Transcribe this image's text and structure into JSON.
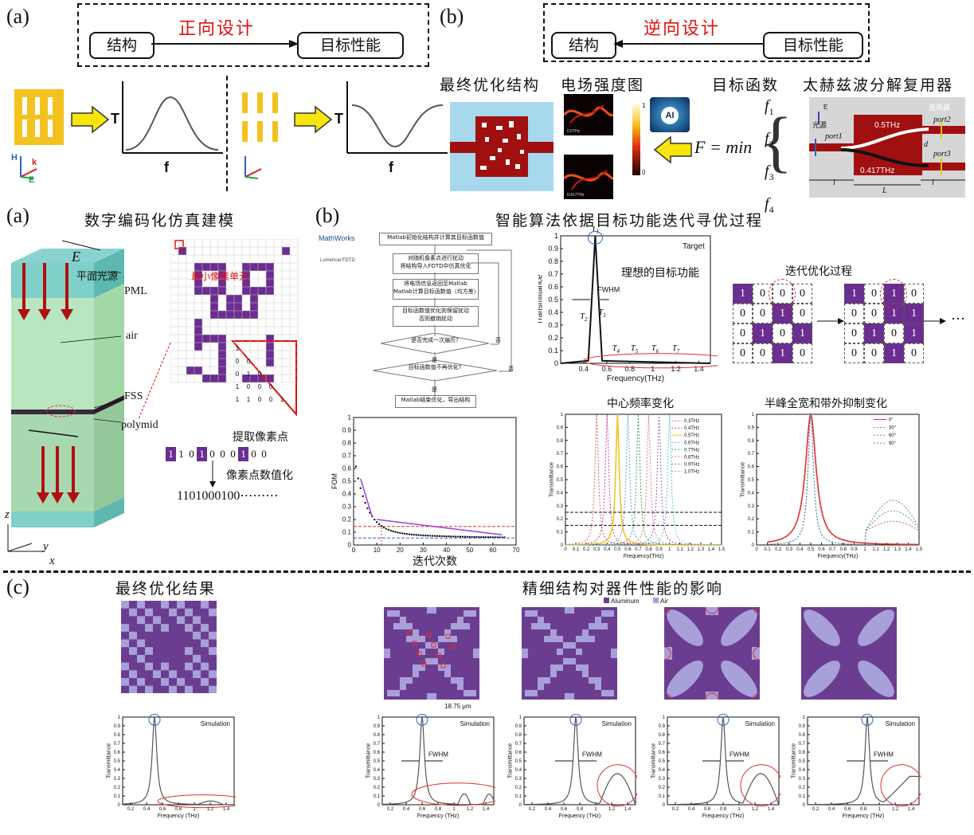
{
  "top": {
    "a": {
      "panel": "(a)",
      "title": "正向设计",
      "from": "结构",
      "to": "目标性能",
      "axis_y": "T",
      "axis_x": "f",
      "h": "H",
      "k": "k",
      "e": "E"
    },
    "b": {
      "panel": "(b)",
      "title": "逆向设计",
      "from": "结构",
      "to": "目标性能",
      "cap_struct": "最终优化结构",
      "cap_field": "电场强度图",
      "cap_obj": "目标函数",
      "cap_demux": "太赫兹波分解复用器",
      "formula_lhs": "F = min",
      "f1": "f",
      "f2": "f",
      "f3": "f",
      "f4": "f",
      "s1": "1",
      "s2": "2",
      "s3": "3",
      "s4": "4",
      "ai": "AI",
      "field_lbl1": "0.5THz",
      "field_lbl2": "0.417THz",
      "cb_max": "1",
      "cb_min": "0",
      "demux": {
        "E": "E",
        "source": "光源",
        "monitor": "监视器",
        "port1": "port1",
        "port2": "port2",
        "port3": "port3",
        "f1": "0.5THz",
        "f2": "0.417THz",
        "d": "d",
        "l1": "l",
        "L": "L",
        "l2": "l"
      }
    }
  },
  "mid": {
    "a": {
      "panel": "(a)",
      "title": "数字编码化仿真建模",
      "E": "E",
      "source": "平面光源",
      "pml": "PML",
      "air": "air",
      "fss": "FSS",
      "polymid": "polymid",
      "z": "z",
      "y": "y",
      "x": "x",
      "min_pixel": "最小像素单元",
      "extract": "提取像素点",
      "digitize": "像素点数值化",
      "bits": [
        "1",
        "1",
        "0",
        "1",
        "0",
        "0",
        "0",
        "1",
        "0",
        "0"
      ],
      "code": "1101000100⋯⋯⋯"
    },
    "b": {
      "panel": "(b)",
      "title": "智能算法依据目标功能迭代寻优过程",
      "logo1": "MathWorks",
      "logo2": "Lumerical FDTD",
      "flow": [
        "Matlab初始化结构并计算其目标函数值",
        "对随机像素点进行扰动\n将结构导入FDTD中仿真优化",
        "将电场信息返回至Matlab\nMatlab计算目标函数值（均方差）",
        "目标函数值优化则保留扰动\n否则撤销扰动",
        "是否完成一次遍历?",
        "目标函数值不再优化?",
        "Matlab结束优化，导出结构"
      ],
      "flow_yes": "是",
      "flow_no": "否",
      "target_lbl": "Target",
      "ideal": "理想的目标功能",
      "fwhm": "FWHM",
      "T": [
        "T",
        "T",
        "T",
        "T",
        "T",
        "T",
        "T"
      ],
      "Tsub": [
        "1",
        "2",
        "3",
        "4",
        "5",
        "6",
        "7"
      ],
      "iter_title": "迭代优化过程",
      "grid1": [
        [
          "1",
          "0",
          "0",
          "0"
        ],
        [
          "0",
          "0",
          "1",
          "0"
        ],
        [
          "0",
          "1",
          "0",
          "1"
        ],
        [
          "0",
          "0",
          "1",
          "0"
        ]
      ],
      "grid2": [
        [
          "1",
          "0",
          "1",
          "0"
        ],
        [
          "0",
          "0",
          "1",
          "1"
        ],
        [
          "0",
          "1",
          "0",
          "1"
        ],
        [
          "0",
          "0",
          "1",
          "0"
        ]
      ],
      "ellipsis": "⋯",
      "fom_xlabel": "迭代次数",
      "fom_ylabel": "FOM",
      "center_title": "中心频率变化",
      "fwhm_title": "半峰全宽和带外抑制变化",
      "freq_legend": [
        "0.3THz",
        "0.4THz",
        "0.5THz",
        "0.6THz",
        "0.7THz",
        "0.8THz",
        "0.9THz",
        "1.0THz"
      ],
      "angle_legend": [
        "0°",
        "30°",
        "60°",
        "90°"
      ],
      "xlab_thz": "Frequency(THz)",
      "xlab_thz_sp": "Frequency (THz)",
      "ylab_t": "Transmittance"
    }
  },
  "bot": {
    "panel": "(c)",
    "title_left": "最终优化结果",
    "title_right": "精细结构对器件性能的影响",
    "sim": "Simulation",
    "fwhm": "FWHM",
    "aluminum": "Aluminum",
    "air": "Air",
    "scale": "18.75 μm"
  },
  "chart_data": [
    {
      "type": "line",
      "title": "",
      "xlabel": "Frequency (THz)",
      "ylabel": "Transmittance",
      "xlim": [
        0.2,
        1.5
      ],
      "ylim": [
        0,
        1
      ],
      "series": [
        {
          "values": [
            [
              0.2,
              0.01
            ],
            [
              0.4,
              0.06
            ],
            [
              0.46,
              0.3
            ],
            [
              0.5,
              1.0
            ],
            [
              0.54,
              0.3
            ],
            [
              0.6,
              0.05
            ],
            [
              0.8,
              0.01
            ],
            [
              1.0,
              0.0
            ],
            [
              1.5,
              0.0
            ]
          ]
        }
      ]
    },
    {
      "type": "line",
      "title": "",
      "xlabel": "迭代次数",
      "ylabel": "FOM",
      "xlim": [
        0,
        70
      ],
      "ylim": [
        0,
        1.0
      ],
      "series": [
        {
          "values": [
            [
              1,
              0.57
            ],
            [
              2,
              0.44
            ],
            [
              3,
              0.36
            ],
            [
              5,
              0.27
            ],
            [
              8,
              0.21
            ],
            [
              12,
              0.16
            ],
            [
              20,
              0.12
            ],
            [
              30,
              0.09
            ],
            [
              40,
              0.07
            ],
            [
              50,
              0.06
            ],
            [
              60,
              0.055
            ],
            [
              65,
              0.055
            ]
          ]
        }
      ]
    },
    {
      "type": "line",
      "title": "中心频率变化",
      "xlabel": "Frequency(THz)",
      "ylabel": "Transmittance",
      "xlim": [
        0,
        1.5
      ],
      "ylim": [
        0,
        1
      ],
      "series": [
        {
          "name": "0.3THz",
          "values": [
            [
              0.2,
              0.05
            ],
            [
              0.3,
              1.0
            ],
            [
              0.4,
              0.05
            ]
          ]
        },
        {
          "name": "0.4THz",
          "values": [
            [
              0.3,
              0.05
            ],
            [
              0.4,
              1.0
            ],
            [
              0.5,
              0.05
            ]
          ]
        },
        {
          "name": "0.5THz",
          "values": [
            [
              0.4,
              0.05
            ],
            [
              0.5,
              1.0
            ],
            [
              0.6,
              0.05
            ]
          ]
        },
        {
          "name": "0.6THz",
          "values": [
            [
              0.5,
              0.05
            ],
            [
              0.6,
              1.0
            ],
            [
              0.7,
              0.05
            ]
          ]
        },
        {
          "name": "0.7THz",
          "values": [
            [
              0.6,
              0.05
            ],
            [
              0.7,
              1.0
            ],
            [
              0.8,
              0.05
            ]
          ]
        },
        {
          "name": "0.8THz",
          "values": [
            [
              0.7,
              0.05
            ],
            [
              0.8,
              1.0
            ],
            [
              0.9,
              0.05
            ]
          ]
        },
        {
          "name": "0.9THz",
          "values": [
            [
              0.8,
              0.05
            ],
            [
              0.9,
              1.0
            ],
            [
              1.0,
              0.05
            ]
          ]
        },
        {
          "name": "1.0THz",
          "values": [
            [
              0.9,
              0.05
            ],
            [
              1.0,
              1.0
            ],
            [
              1.1,
              0.05
            ]
          ]
        }
      ]
    },
    {
      "type": "line",
      "title": "半峰全宽和带外抑制变化",
      "xlabel": "Frequency(THz)",
      "ylabel": "Transmittance",
      "xlim": [
        0,
        1.5
      ],
      "ylim": [
        0,
        1
      ],
      "series": [
        {
          "name": "0°",
          "values": [
            [
              0.1,
              0.01
            ],
            [
              0.4,
              0.3
            ],
            [
              0.5,
              1.0
            ],
            [
              0.6,
              0.1
            ],
            [
              1.0,
              0.01
            ],
            [
              1.5,
              0.05
            ]
          ]
        },
        {
          "name": "30°",
          "values": [
            [
              0.1,
              0.01
            ],
            [
              0.5,
              0.95
            ],
            [
              1.0,
              0.1
            ],
            [
              1.4,
              0.4
            ]
          ]
        },
        {
          "name": "60°",
          "values": [
            [
              0.1,
              0.01
            ],
            [
              0.5,
              0.95
            ],
            [
              1.0,
              0.15
            ],
            [
              1.4,
              0.45
            ]
          ]
        },
        {
          "name": "90°",
          "values": [
            [
              0.1,
              0.01
            ],
            [
              0.5,
              0.95
            ],
            [
              1.0,
              0.2
            ],
            [
              1.4,
              0.5
            ]
          ]
        }
      ]
    }
  ]
}
